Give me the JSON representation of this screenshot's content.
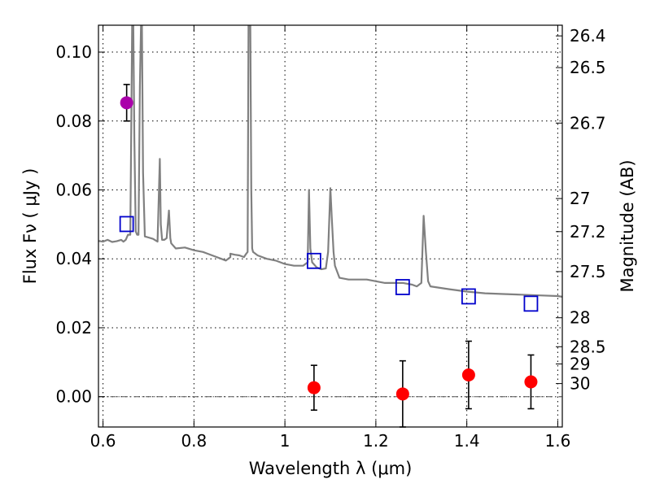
{
  "chart_data": {
    "type": "scatter",
    "xlabel": "Wavelength  λ (μm)",
    "ylabel": "Flux  Fν  ( μJy )",
    "ylabel_right": "Magnitude (AB)",
    "xlim": [
      0.59,
      1.61
    ],
    "ylim": [
      -0.0088,
      0.1078
    ],
    "grid": true,
    "x_ticks": [
      {
        "value": 0.6,
        "label": "0.6"
      },
      {
        "value": 0.8,
        "label": "0.8"
      },
      {
        "value": 1.0,
        "label": "1"
      },
      {
        "value": 1.2,
        "label": "1.2"
      },
      {
        "value": 1.4,
        "label": "1.4"
      },
      {
        "value": 1.6,
        "label": "1.6"
      }
    ],
    "y_ticks": [
      {
        "value": 0.0,
        "label": "0.00"
      },
      {
        "value": 0.02,
        "label": "0.02"
      },
      {
        "value": 0.04,
        "label": "0.04"
      },
      {
        "value": 0.06,
        "label": "0.06"
      },
      {
        "value": 0.08,
        "label": "0.08"
      },
      {
        "value": 0.1,
        "label": "0.10"
      }
    ],
    "mag_ticks": [
      {
        "flux": 0.1047,
        "label": "26.4"
      },
      {
        "flux": 0.0955,
        "label": "26.5"
      },
      {
        "flux": 0.0794,
        "label": "26.7"
      },
      {
        "flux": 0.0575,
        "label": "27"
      },
      {
        "flux": 0.0479,
        "label": "27.2"
      },
      {
        "flux": 0.0363,
        "label": "27.5"
      },
      {
        "flux": 0.0229,
        "label": "28"
      },
      {
        "flux": 0.0145,
        "label": "28.5"
      },
      {
        "flux": 0.0095,
        "label": "29"
      },
      {
        "flux": 0.0038,
        "label": "30"
      }
    ],
    "series": [
      {
        "name": "model-spectrum",
        "kind": "line",
        "color": "#808080",
        "x": [
          0.59,
          0.6,
          0.61,
          0.62,
          0.63,
          0.64,
          0.645,
          0.65,
          0.655,
          0.66,
          0.662,
          0.664,
          0.6665,
          0.669,
          0.672,
          0.675,
          0.678,
          0.681,
          0.6835,
          0.6855,
          0.688,
          0.692,
          0.7,
          0.71,
          0.72,
          0.725,
          0.727,
          0.73,
          0.735,
          0.74,
          0.745,
          0.748,
          0.75,
          0.76,
          0.78,
          0.8,
          0.82,
          0.84,
          0.86,
          0.87,
          0.88,
          0.88,
          0.89,
          0.9,
          0.91,
          0.915,
          0.918,
          0.92,
          0.922,
          0.924,
          0.926,
          0.928,
          0.93,
          0.94,
          0.96,
          0.98,
          1.0,
          1.02,
          1.04,
          1.05,
          1.053,
          1.056,
          1.06,
          1.07,
          1.08,
          1.09,
          1.095,
          1.1,
          1.103,
          1.107,
          1.11,
          1.12,
          1.14,
          1.18,
          1.22,
          1.26,
          1.28,
          1.29,
          1.3,
          1.305,
          1.31,
          1.315,
          1.32,
          1.36,
          1.4,
          1.44,
          1.48,
          1.52,
          1.56,
          1.6,
          1.61
        ],
        "y": [
          0.0452,
          0.045,
          0.0455,
          0.0449,
          0.0451,
          0.0455,
          0.045,
          0.0455,
          0.047,
          0.047,
          0.075,
          0.108,
          0.108,
          0.075,
          0.048,
          0.047,
          0.047,
          0.09,
          0.108,
          0.108,
          0.065,
          0.0465,
          0.0462,
          0.0458,
          0.045,
          0.069,
          0.05,
          0.0455,
          0.0455,
          0.046,
          0.054,
          0.046,
          0.0445,
          0.043,
          0.0433,
          0.0425,
          0.042,
          0.041,
          0.04,
          0.0395,
          0.0405,
          0.0415,
          0.0412,
          0.041,
          0.0405,
          0.0415,
          0.042,
          0.108,
          0.108,
          0.108,
          0.06,
          0.043,
          0.042,
          0.041,
          0.04,
          0.0395,
          0.0385,
          0.038,
          0.038,
          0.039,
          0.06,
          0.043,
          0.039,
          0.0375,
          0.037,
          0.0372,
          0.042,
          0.0605,
          0.052,
          0.042,
          0.038,
          0.0345,
          0.034,
          0.034,
          0.033,
          0.033,
          0.0325,
          0.032,
          0.033,
          0.0525,
          0.042,
          0.0335,
          0.032,
          0.0312,
          0.0305,
          0.03,
          0.0298,
          0.0296,
          0.0294,
          0.0292,
          0.029
        ]
      },
      {
        "name": "model-photometry",
        "kind": "open-square",
        "color": "#0000cc",
        "x": [
          0.652,
          1.064,
          1.259,
          1.404,
          1.541
        ],
        "y": [
          0.0501,
          0.0394,
          0.0318,
          0.0291,
          0.027
        ]
      },
      {
        "name": "observed-optical",
        "kind": "filled-circle",
        "color": "#aa00aa",
        "x": [
          0.652
        ],
        "y": [
          0.0853
        ],
        "err": [
          0.0053
        ]
      },
      {
        "name": "observed-nir",
        "kind": "filled-circle",
        "color": "#ff0000",
        "x": [
          1.064,
          1.259,
          1.404,
          1.541
        ],
        "y": [
          0.0026,
          0.0008,
          0.0063,
          0.0043
        ],
        "err": [
          0.0065,
          0.0096,
          0.0098,
          0.0078
        ]
      }
    ]
  }
}
